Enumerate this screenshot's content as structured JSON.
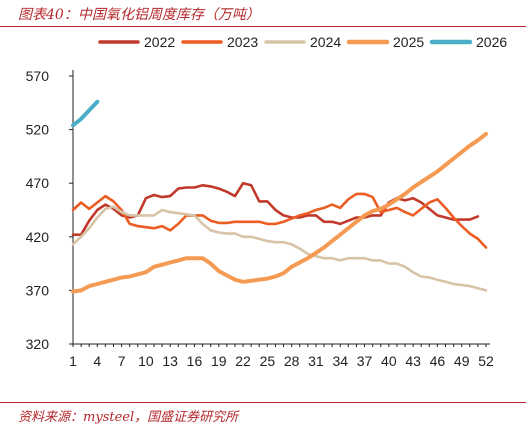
{
  "figure": {
    "title": "图表40：中国氧化铝周度库存（万吨）",
    "source": "资料来源：mysteel，国盛证券研究所",
    "accent_color": "#b5282c"
  },
  "chart_data": {
    "type": "line",
    "title": "中国氧化铝周度库存（万吨）",
    "xlabel": "",
    "ylabel": "",
    "unit": "万吨",
    "xlim": [
      1,
      52
    ],
    "ylim": [
      320,
      570
    ],
    "yticks": [
      320,
      370,
      420,
      470,
      520,
      570
    ],
    "xticks": [
      1,
      4,
      7,
      10,
      13,
      16,
      19,
      22,
      25,
      28,
      31,
      34,
      37,
      40,
      43,
      46,
      49,
      52
    ],
    "grid": false,
    "legend_position": "top",
    "x": [
      1,
      2,
      3,
      4,
      5,
      6,
      7,
      8,
      9,
      10,
      11,
      12,
      13,
      14,
      15,
      16,
      17,
      18,
      19,
      20,
      21,
      22,
      23,
      24,
      25,
      26,
      27,
      28,
      29,
      30,
      31,
      32,
      33,
      34,
      35,
      36,
      37,
      38,
      39,
      40,
      41,
      42,
      43,
      44,
      45,
      46,
      47,
      48,
      49,
      50,
      51,
      52
    ],
    "series": [
      {
        "name": "2022",
        "color": "#c0392b",
        "values": [
          422,
          422,
          435,
          445,
          450,
          446,
          440,
          438,
          440,
          456,
          459,
          457,
          458,
          465,
          466,
          466,
          468,
          467,
          465,
          462,
          458,
          470,
          468,
          453,
          453,
          445,
          440,
          438,
          438,
          440,
          440,
          434,
          434,
          432,
          435,
          438,
          438,
          440,
          440,
          452,
          456,
          454,
          456,
          452,
          446,
          440,
          438,
          436,
          436,
          436,
          439,
          null
        ]
      },
      {
        "name": "2023",
        "color": "#ec5d23",
        "values": [
          445,
          452,
          446,
          452,
          458,
          453,
          445,
          432,
          430,
          429,
          428,
          430,
          426,
          432,
          440,
          440,
          440,
          435,
          433,
          433,
          434,
          434,
          434,
          434,
          432,
          432,
          434,
          437,
          440,
          442,
          445,
          447,
          450,
          447,
          455,
          460,
          460,
          457,
          443,
          445,
          447,
          443,
          440,
          446,
          452,
          455,
          447,
          438,
          430,
          423,
          418,
          410
        ]
      },
      {
        "name": "2024",
        "color": "#d7c4a7",
        "values": [
          413,
          420,
          428,
          438,
          446,
          448,
          443,
          440,
          440,
          440,
          440,
          445,
          443,
          442,
          441,
          440,
          432,
          426,
          424,
          423,
          423,
          420,
          420,
          418,
          416,
          415,
          415,
          413,
          409,
          404,
          402,
          400,
          400,
          398,
          400,
          400,
          400,
          398,
          398,
          395,
          395,
          392,
          387,
          383,
          382,
          380,
          378,
          376,
          375,
          374,
          372,
          370
        ]
      },
      {
        "name": "2025",
        "color": "#f49a52",
        "values": [
          369,
          370,
          374,
          376,
          378,
          380,
          382,
          383,
          385,
          387,
          392,
          394,
          396,
          398,
          400,
          400,
          400,
          395,
          388,
          384,
          380,
          378,
          379,
          380,
          381,
          383,
          386,
          392,
          396,
          400,
          405,
          410,
          416,
          422,
          428,
          434,
          440,
          444,
          446,
          450,
          455,
          460,
          466,
          471,
          476,
          481,
          487,
          493,
          499,
          505,
          510,
          516
        ]
      },
      {
        "name": "2026",
        "color": "#4aafc6",
        "values": [
          524,
          530,
          538,
          546,
          null,
          null,
          null,
          null,
          null,
          null,
          null,
          null,
          null,
          null,
          null,
          null,
          null,
          null,
          null,
          null,
          null,
          null,
          null,
          null,
          null,
          null,
          null,
          null,
          null,
          null,
          null,
          null,
          null,
          null,
          null,
          null,
          null,
          null,
          null,
          null,
          null,
          null,
          null,
          null,
          null,
          null,
          null,
          null,
          null,
          null,
          null,
          null
        ]
      }
    ]
  }
}
